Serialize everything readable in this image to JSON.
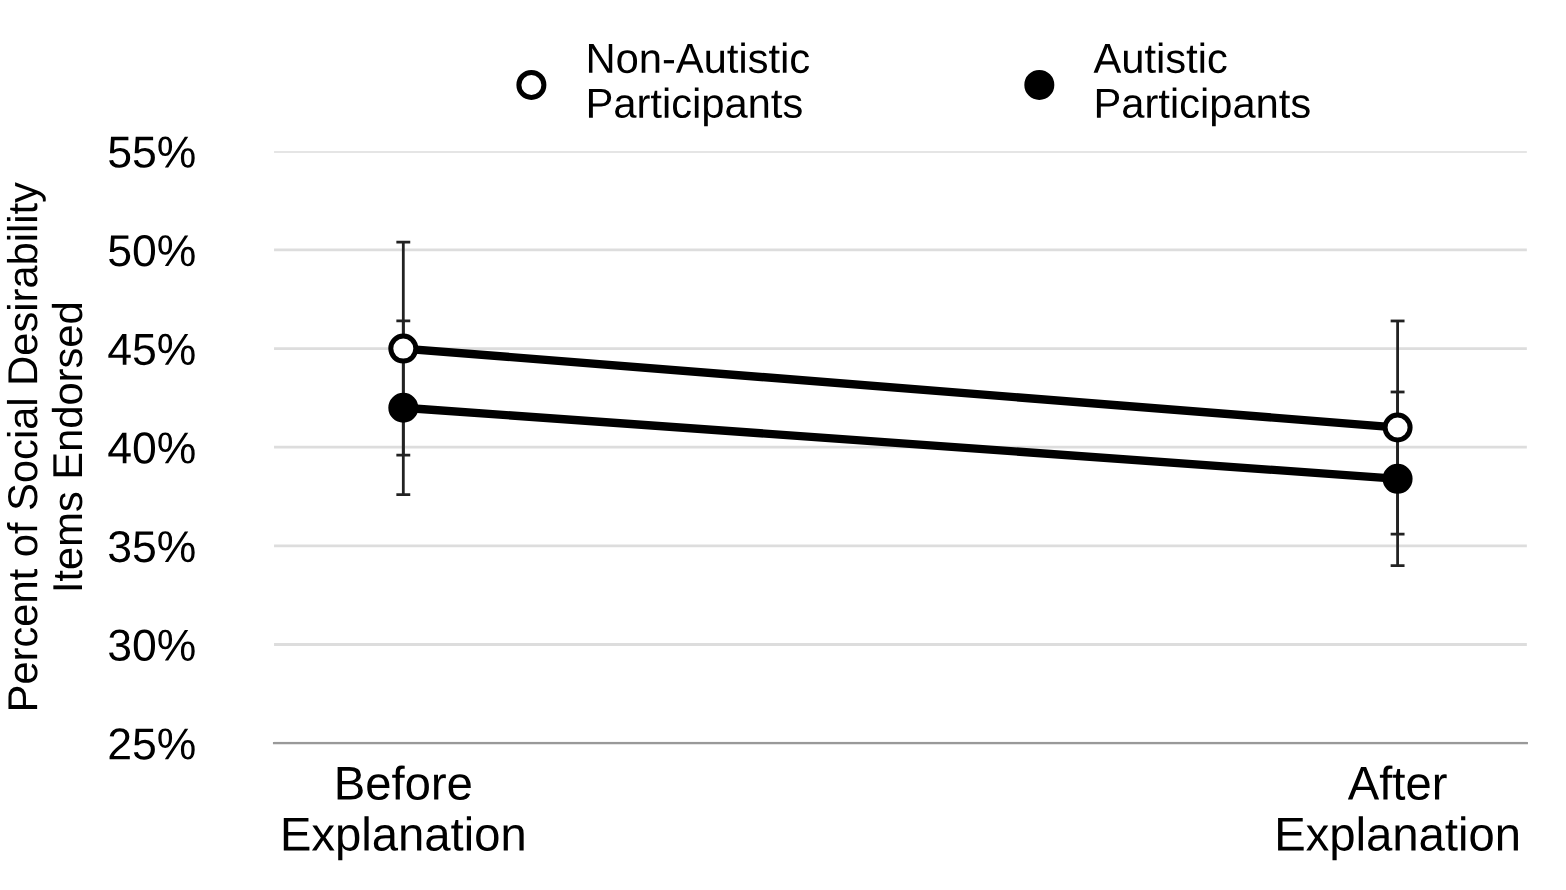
{
  "chart_data": {
    "type": "line",
    "ylabel": "Percent of Social Desirability\nItems Endorsed",
    "categories": [
      "Before\nExplanation",
      "After\nExplanation"
    ],
    "series": [
      {
        "name": "Non-Autistic\nParticipants",
        "color": "#000000",
        "values": [
          45.0,
          41.0
        ],
        "errors": [
          5.4,
          5.4
        ]
      },
      {
        "name": "Autistic\nParticipants",
        "color": "#000000",
        "values": [
          42.0,
          38.4
        ],
        "errors": [
          4.4,
          4.4
        ]
      }
    ],
    "ylim": [
      25,
      55
    ],
    "yticks": [
      {
        "value": 25,
        "label": "25%"
      },
      {
        "value": 30,
        "label": "30%"
      },
      {
        "value": 35,
        "label": "35%"
      },
      {
        "value": 40,
        "label": "40%"
      },
      {
        "value": 45,
        "label": "45%"
      },
      {
        "value": 50,
        "label": "50%"
      },
      {
        "value": 55,
        "label": "55%"
      }
    ],
    "grid": "y",
    "legend": "top",
    "marker": "circle",
    "line_style": "solid"
  }
}
